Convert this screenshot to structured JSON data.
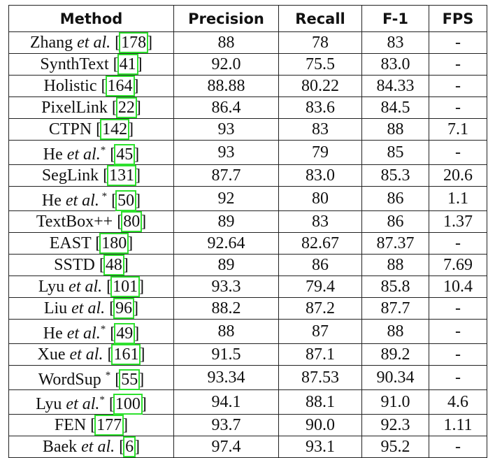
{
  "table": {
    "header": [
      "Method",
      "Precision",
      "Recall",
      "F-1",
      "FPS"
    ],
    "rows": [
      {
        "method": [
          {
            "text": "Zhang "
          },
          {
            "text": "et al.",
            "style": "italic"
          },
          {
            "text": " ["
          },
          {
            "text": "178",
            "style": "cite"
          },
          {
            "text": "]"
          }
        ],
        "cells": [
          "88",
          "78",
          "83",
          "-"
        ]
      },
      {
        "method": [
          {
            "text": "SynthText ["
          },
          {
            "text": "41",
            "style": "cite"
          },
          {
            "text": "]"
          }
        ],
        "cells": [
          "92.0",
          "75.5",
          "83.0",
          "-"
        ]
      },
      {
        "method": [
          {
            "text": "Holistic ["
          },
          {
            "text": "164",
            "style": "cite"
          },
          {
            "text": "]"
          }
        ],
        "cells": [
          "88.88",
          "80.22",
          "84.33",
          "-"
        ]
      },
      {
        "method": [
          {
            "text": "PixelLink ["
          },
          {
            "text": "22",
            "style": "cite"
          },
          {
            "text": "]"
          }
        ],
        "cells": [
          "86.4",
          "83.6",
          "84.5",
          "-"
        ]
      },
      {
        "method": [
          {
            "text": "CTPN ["
          },
          {
            "text": "142",
            "style": "cite"
          },
          {
            "text": "]"
          }
        ],
        "cells": [
          "93",
          "83",
          "88",
          "7.1"
        ]
      },
      {
        "method": [
          {
            "text": "He "
          },
          {
            "text": "et al.",
            "style": "italic"
          },
          {
            "text": "*",
            "style": "sup"
          },
          {
            "text": " ["
          },
          {
            "text": "45",
            "style": "cite"
          },
          {
            "text": "]"
          }
        ],
        "cells": [
          "93",
          "79",
          "85",
          "-"
        ]
      },
      {
        "method": [
          {
            "text": "SegLink ["
          },
          {
            "text": "131",
            "style": "cite"
          },
          {
            "text": "]"
          }
        ],
        "cells": [
          "87.7",
          "83.0",
          "85.3",
          "20.6"
        ]
      },
      {
        "method": [
          {
            "text": "He "
          },
          {
            "text": "et al.",
            "style": "italic"
          },
          {
            "text": " *",
            "style": "sup"
          },
          {
            "text": " ["
          },
          {
            "text": "50",
            "style": "cite"
          },
          {
            "text": "]"
          }
        ],
        "cells": [
          "92",
          "80",
          "86",
          "1.1"
        ]
      },
      {
        "method": [
          {
            "text": "TextBox++ ["
          },
          {
            "text": "80",
            "style": "cite"
          },
          {
            "text": "]"
          }
        ],
        "cells": [
          "89",
          "83",
          "86",
          "1.37"
        ]
      },
      {
        "method": [
          {
            "text": "EAST ["
          },
          {
            "text": "180",
            "style": "cite"
          },
          {
            "text": "]"
          }
        ],
        "cells": [
          "92.64",
          "82.67",
          "87.37",
          "-"
        ]
      },
      {
        "method": [
          {
            "text": "SSTD ["
          },
          {
            "text": "48",
            "style": "cite"
          },
          {
            "text": "]"
          }
        ],
        "cells": [
          "89",
          "86",
          "88",
          "7.69"
        ]
      },
      {
        "method": [
          {
            "text": "Lyu "
          },
          {
            "text": "et al.",
            "style": "italic"
          },
          {
            "text": " ["
          },
          {
            "text": "101",
            "style": "cite"
          },
          {
            "text": "]"
          }
        ],
        "cells": [
          "93.3",
          "79.4",
          "85.8",
          "10.4"
        ]
      },
      {
        "method": [
          {
            "text": "Liu "
          },
          {
            "text": "et al.",
            "style": "italic"
          },
          {
            "text": " ["
          },
          {
            "text": "96",
            "style": "cite"
          },
          {
            "text": "]"
          }
        ],
        "cells": [
          "88.2",
          "87.2",
          "87.7",
          "-"
        ]
      },
      {
        "method": [
          {
            "text": "He "
          },
          {
            "text": "et al.",
            "style": "italic"
          },
          {
            "text": "*",
            "style": "sup"
          },
          {
            "text": " ["
          },
          {
            "text": "49",
            "style": "cite"
          },
          {
            "text": "]"
          }
        ],
        "cells": [
          "88",
          "87",
          "88",
          "-"
        ]
      },
      {
        "method": [
          {
            "text": "Xue "
          },
          {
            "text": "et al.",
            "style": "italic"
          },
          {
            "text": " ["
          },
          {
            "text": "161",
            "style": "cite"
          },
          {
            "text": "]"
          }
        ],
        "cells": [
          "91.5",
          "87.1",
          "89.2",
          "-"
        ]
      },
      {
        "method": [
          {
            "text": "WordSup "
          },
          {
            "text": "*",
            "style": "sup"
          },
          {
            "text": " ["
          },
          {
            "text": "55",
            "style": "cite"
          },
          {
            "text": "]"
          }
        ],
        "cells": [
          "93.34",
          "87.53",
          "90.34",
          "-"
        ]
      },
      {
        "method": [
          {
            "text": "Lyu "
          },
          {
            "text": "et al.",
            "style": "italic"
          },
          {
            "text": "*",
            "style": "sup"
          },
          {
            "text": " ["
          },
          {
            "text": "100",
            "style": "cite"
          },
          {
            "text": "]"
          }
        ],
        "cells": [
          "94.1",
          "88.1",
          "91.0",
          "4.6"
        ]
      },
      {
        "method": [
          {
            "text": "FEN ["
          },
          {
            "text": "177",
            "style": "cite"
          },
          {
            "text": "]"
          }
        ],
        "cells": [
          "93.7",
          "90.0",
          "92.3",
          "1.11"
        ]
      },
      {
        "method": [
          {
            "text": "Baek "
          },
          {
            "text": "et al.",
            "style": "italic"
          },
          {
            "text": " ["
          },
          {
            "text": "6",
            "style": "cite"
          },
          {
            "text": "]"
          }
        ],
        "cells": [
          "97.4",
          "93.1",
          "95.2",
          "-"
        ]
      }
    ]
  }
}
